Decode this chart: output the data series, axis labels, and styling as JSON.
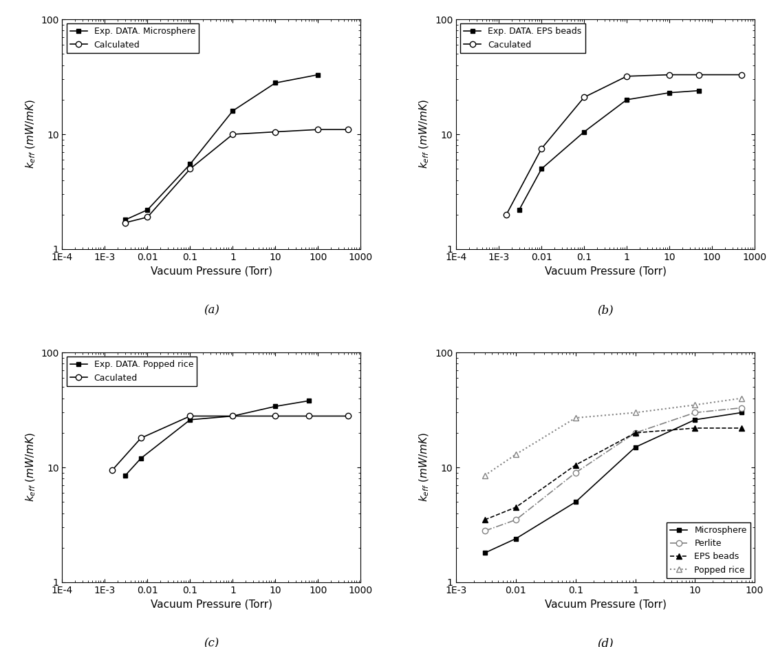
{
  "subplot_a": {
    "exp_label": "Exp. DATA. Microsphere",
    "calc_label": "Calculated",
    "exp_x": [
      0.003,
      0.01,
      0.1,
      1,
      10,
      100
    ],
    "exp_y": [
      1.8,
      2.2,
      5.5,
      16,
      28,
      33
    ],
    "calc_x": [
      0.003,
      0.01,
      0.1,
      1,
      10,
      100,
      500
    ],
    "calc_y": [
      1.7,
      1.9,
      5.0,
      10.0,
      10.5,
      11.0,
      11.0
    ],
    "xlim": [
      0.0001,
      1000
    ],
    "ylim": [
      1,
      100
    ],
    "xlabel": "Vacuum Pressure (Torr)",
    "ylabel": "$k_{eff}$ $(mW/mK)$",
    "label": "(a)"
  },
  "subplot_b": {
    "exp_label": "Exp. DATA. EPS beads",
    "calc_label": "Caculated",
    "exp_x": [
      0.003,
      0.01,
      0.1,
      1,
      10,
      50
    ],
    "exp_y": [
      2.2,
      5.0,
      10.5,
      20,
      23,
      24
    ],
    "calc_x": [
      0.0015,
      0.01,
      0.1,
      1,
      10,
      50,
      500
    ],
    "calc_y": [
      2.0,
      7.5,
      21,
      32,
      33,
      33,
      33
    ],
    "xlim": [
      0.0001,
      1000
    ],
    "ylim": [
      1,
      100
    ],
    "xlabel": "Vacuum Pressure (Torr)",
    "ylabel": "$k_{eff}$ $(mW/mK)$",
    "label": "(b)"
  },
  "subplot_c": {
    "exp_label": "Exp. DATA. Popped rice",
    "calc_label": "Caculated",
    "exp_x": [
      0.003,
      0.007,
      0.1,
      1,
      10,
      60
    ],
    "exp_y": [
      8.5,
      12.0,
      26,
      28,
      34,
      38
    ],
    "calc_x": [
      0.0015,
      0.007,
      0.1,
      1,
      10,
      60,
      500
    ],
    "calc_y": [
      9.5,
      18,
      28,
      28,
      28,
      28,
      28
    ],
    "xlim": [
      0.0001,
      1000
    ],
    "ylim": [
      1,
      100
    ],
    "xlabel": "Vacuum Pressure (Torr)",
    "ylabel": "$k_{eff}$ $(mW/mK)$",
    "label": "(c)"
  },
  "subplot_d": {
    "xlabel": "Vacuum Pressure (Torr)",
    "ylabel": "$k_{eff}$ $(mW/mK)$",
    "xlim": [
      0.002,
      100
    ],
    "ylim": [
      1,
      100
    ],
    "label": "(d)",
    "microsphere_x": [
      0.003,
      0.01,
      0.1,
      1,
      10,
      60
    ],
    "microsphere_y": [
      1.8,
      2.4,
      5.0,
      15,
      26,
      30
    ],
    "perlite_x": [
      0.003,
      0.01,
      0.1,
      1,
      10,
      60
    ],
    "perlite_y": [
      2.8,
      3.5,
      9.0,
      20,
      30,
      33
    ],
    "eps_x": [
      0.003,
      0.01,
      0.1,
      1,
      10,
      60
    ],
    "eps_y": [
      3.5,
      4.5,
      10.5,
      20,
      22,
      22
    ],
    "popped_x": [
      0.003,
      0.01,
      0.1,
      1,
      10,
      60
    ],
    "popped_y": [
      8.5,
      13.0,
      27,
      30,
      35,
      40
    ]
  }
}
